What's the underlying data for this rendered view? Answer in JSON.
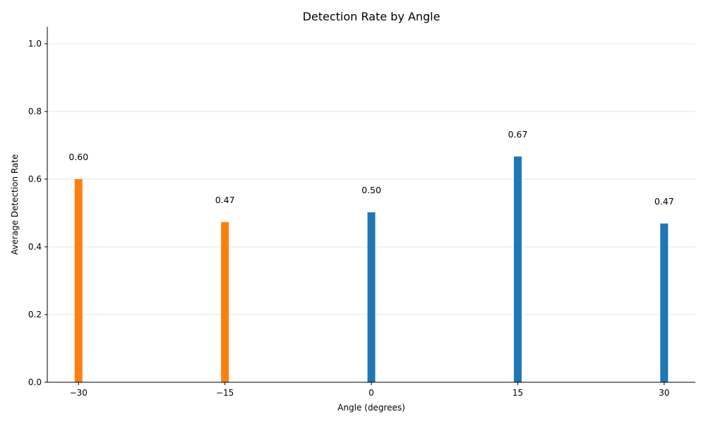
{
  "chart_data": {
    "type": "bar",
    "title": "Detection Rate by Angle",
    "xlabel": "Angle (degrees)",
    "ylabel": "Average Detection Rate",
    "x": [
      -30,
      -15,
      0,
      15,
      30
    ],
    "values": [
      0.6,
      0.473,
      0.502,
      0.667,
      0.469
    ],
    "value_labels": [
      "0.60",
      "0.47",
      "0.50",
      "0.67",
      "0.47"
    ],
    "bar_colors": [
      "#ff7f0e",
      "#ff7f0e",
      "#1f77b4",
      "#1f77b4",
      "#1f77b4"
    ],
    "x_ticks": [
      -30,
      -15,
      0,
      15,
      30
    ],
    "x_tick_labels": [
      "−30",
      "−15",
      "0",
      "15",
      "30"
    ],
    "y_ticks": [
      0.0,
      0.2,
      0.4,
      0.6,
      0.8,
      1.0
    ],
    "y_tick_labels": [
      "0.0",
      "0.2",
      "0.4",
      "0.6",
      "0.8",
      "1.0"
    ],
    "xlim": [
      -33.2,
      33.2
    ],
    "ylim": [
      0,
      1.05
    ],
    "grid": "horizontal",
    "legend": "none"
  }
}
